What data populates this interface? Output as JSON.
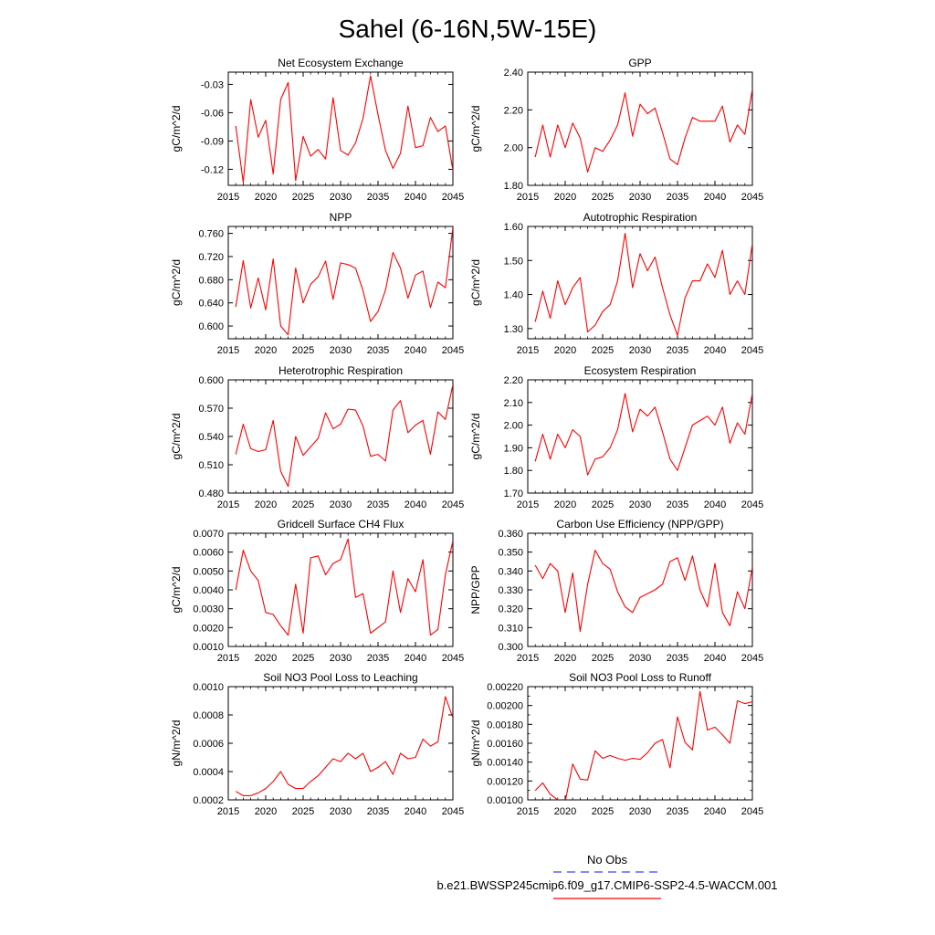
{
  "title": "Sahel (6-16N,5W-15E)",
  "legend": {
    "obs_label": "No Obs",
    "model_label": "b.e21.BWSSP245cmip6.f09_g17.CMIP6-SSP2-4.5-WACCM.001",
    "obs_color": "#4040ff",
    "model_color": "#ff0000"
  },
  "chart_data": [
    {
      "type": "line",
      "title": "Net Ecosystem Exchange",
      "ylabel": "gC/m^2/d",
      "xlim": [
        2015,
        2045
      ],
      "ylim": [
        -0.137,
        -0.017
      ],
      "xticks": [
        2015,
        2020,
        2025,
        2030,
        2035,
        2040,
        2045
      ],
      "xtick_labels": [
        "2015",
        "2020",
        "2025",
        "2030",
        "2035",
        "2040",
        "2045"
      ],
      "yticks": [
        -0.12,
        -0.09,
        -0.06,
        -0.03
      ],
      "ytick_labels": [
        "-0.12",
        "-0.09",
        "-0.06",
        "-0.03"
      ],
      "x": [
        2016,
        2017,
        2018,
        2019,
        2020,
        2021,
        2022,
        2023,
        2024,
        2025,
        2026,
        2027,
        2028,
        2029,
        2030,
        2031,
        2032,
        2033,
        2034,
        2035,
        2036,
        2037,
        2038,
        2039,
        2040,
        2041,
        2042,
        2043,
        2044,
        2045
      ],
      "series": [
        {
          "values": [
            -0.074,
            -0.134,
            -0.046,
            -0.086,
            -0.068,
            -0.125,
            -0.046,
            -0.028,
            -0.132,
            -0.085,
            -0.106,
            -0.099,
            -0.109,
            -0.044,
            -0.1,
            -0.105,
            -0.092,
            -0.066,
            -0.021,
            -0.062,
            -0.1,
            -0.119,
            -0.103,
            -0.053,
            -0.097,
            -0.095,
            -0.065,
            -0.08,
            -0.074,
            -0.121
          ]
        }
      ]
    },
    {
      "type": "line",
      "title": "GPP",
      "ylabel": "gC/m^2/d",
      "xlim": [
        2015,
        2045
      ],
      "ylim": [
        1.8,
        2.4
      ],
      "xticks": [
        2015,
        2020,
        2025,
        2030,
        2035,
        2040,
        2045
      ],
      "xtick_labels": [
        "2015",
        "2020",
        "2025",
        "2030",
        "2035",
        "2040",
        "2045"
      ],
      "yticks": [
        1.8,
        2.0,
        2.2,
        2.4
      ],
      "ytick_labels": [
        "1.80",
        "2.00",
        "2.20",
        "2.40"
      ],
      "x": [
        2016,
        2017,
        2018,
        2019,
        2020,
        2021,
        2022,
        2023,
        2024,
        2025,
        2026,
        2027,
        2028,
        2029,
        2030,
        2031,
        2032,
        2033,
        2034,
        2035,
        2036,
        2037,
        2038,
        2039,
        2040,
        2041,
        2042,
        2043,
        2044,
        2045
      ],
      "series": [
        {
          "values": [
            1.95,
            2.12,
            1.95,
            2.12,
            2.0,
            2.13,
            2.05,
            1.87,
            2.0,
            1.98,
            2.04,
            2.12,
            2.29,
            2.06,
            2.23,
            2.18,
            2.21,
            2.08,
            1.94,
            1.91,
            2.05,
            2.16,
            2.14,
            2.14,
            2.14,
            2.22,
            2.03,
            2.12,
            2.07,
            2.31
          ]
        }
      ]
    },
    {
      "type": "line",
      "title": "NPP",
      "ylabel": "gC/m^2/d",
      "xlim": [
        2015,
        2045
      ],
      "ylim": [
        0.578,
        0.772
      ],
      "xticks": [
        2015,
        2020,
        2025,
        2030,
        2035,
        2040,
        2045
      ],
      "xtick_labels": [
        "2015",
        "2020",
        "2025",
        "2030",
        "2035",
        "2040",
        "2045"
      ],
      "yticks": [
        0.6,
        0.64,
        0.68,
        0.72,
        0.76
      ],
      "ytick_labels": [
        "0.600",
        "0.640",
        "0.680",
        "0.720",
        "0.760"
      ],
      "x": [
        2016,
        2017,
        2018,
        2019,
        2020,
        2021,
        2022,
        2023,
        2024,
        2025,
        2026,
        2027,
        2028,
        2029,
        2030,
        2031,
        2032,
        2033,
        2034,
        2035,
        2036,
        2037,
        2038,
        2039,
        2040,
        2041,
        2042,
        2043,
        2044,
        2045
      ],
      "series": [
        {
          "values": [
            0.633,
            0.713,
            0.631,
            0.683,
            0.628,
            0.716,
            0.6,
            0.585,
            0.7,
            0.64,
            0.672,
            0.685,
            0.712,
            0.646,
            0.709,
            0.706,
            0.7,
            0.661,
            0.608,
            0.625,
            0.662,
            0.727,
            0.7,
            0.648,
            0.688,
            0.695,
            0.632,
            0.676,
            0.666,
            0.77
          ]
        }
      ]
    },
    {
      "type": "line",
      "title": "Autotrophic Respiration",
      "ylabel": "gC/m^2/d",
      "xlim": [
        2015,
        2045
      ],
      "ylim": [
        1.27,
        1.6
      ],
      "xticks": [
        2015,
        2020,
        2025,
        2030,
        2035,
        2040,
        2045
      ],
      "xtick_labels": [
        "2015",
        "2020",
        "2025",
        "2030",
        "2035",
        "2040",
        "2045"
      ],
      "yticks": [
        1.3,
        1.4,
        1.5,
        1.6
      ],
      "ytick_labels": [
        "1.30",
        "1.40",
        "1.50",
        "1.60"
      ],
      "x": [
        2016,
        2017,
        2018,
        2019,
        2020,
        2021,
        2022,
        2023,
        2024,
        2025,
        2026,
        2027,
        2028,
        2029,
        2030,
        2031,
        2032,
        2033,
        2034,
        2035,
        2036,
        2037,
        2038,
        2039,
        2040,
        2041,
        2042,
        2043,
        2044,
        2045
      ],
      "series": [
        {
          "values": [
            1.32,
            1.41,
            1.33,
            1.44,
            1.37,
            1.42,
            1.45,
            1.29,
            1.31,
            1.35,
            1.37,
            1.44,
            1.58,
            1.42,
            1.52,
            1.47,
            1.51,
            1.42,
            1.34,
            1.28,
            1.39,
            1.44,
            1.44,
            1.49,
            1.45,
            1.53,
            1.4,
            1.44,
            1.4,
            1.55
          ]
        }
      ]
    },
    {
      "type": "line",
      "title": "Heterotrophic Respiration",
      "ylabel": "gC/m^2/d",
      "xlim": [
        2015,
        2045
      ],
      "ylim": [
        0.48,
        0.6
      ],
      "xticks": [
        2015,
        2020,
        2025,
        2030,
        2035,
        2040,
        2045
      ],
      "xtick_labels": [
        "2015",
        "2020",
        "2025",
        "2030",
        "2035",
        "2040",
        "2045"
      ],
      "yticks": [
        0.48,
        0.51,
        0.54,
        0.57,
        0.6
      ],
      "ytick_labels": [
        "0.480",
        "0.510",
        "0.540",
        "0.570",
        "0.600"
      ],
      "x": [
        2016,
        2017,
        2018,
        2019,
        2020,
        2021,
        2022,
        2023,
        2024,
        2025,
        2026,
        2027,
        2028,
        2029,
        2030,
        2031,
        2032,
        2033,
        2034,
        2035,
        2036,
        2037,
        2038,
        2039,
        2040,
        2041,
        2042,
        2043,
        2044,
        2045
      ],
      "series": [
        {
          "values": [
            0.521,
            0.553,
            0.527,
            0.524,
            0.526,
            0.557,
            0.503,
            0.487,
            0.54,
            0.52,
            0.529,
            0.538,
            0.565,
            0.548,
            0.553,
            0.569,
            0.568,
            0.551,
            0.519,
            0.521,
            0.514,
            0.568,
            0.578,
            0.544,
            0.552,
            0.557,
            0.521,
            0.566,
            0.558,
            0.595
          ]
        }
      ]
    },
    {
      "type": "line",
      "title": "Ecosystem Respiration",
      "ylabel": "gC/m^2/d",
      "xlim": [
        2015,
        2045
      ],
      "ylim": [
        1.7,
        2.2
      ],
      "xticks": [
        2015,
        2020,
        2025,
        2030,
        2035,
        2040,
        2045
      ],
      "xtick_labels": [
        "2015",
        "2020",
        "2025",
        "2030",
        "2035",
        "2040",
        "2045"
      ],
      "yticks": [
        1.7,
        1.8,
        1.9,
        2.0,
        2.1,
        2.2
      ],
      "ytick_labels": [
        "1.70",
        "1.80",
        "1.90",
        "2.00",
        "2.10",
        "2.20"
      ],
      "x": [
        2016,
        2017,
        2018,
        2019,
        2020,
        2021,
        2022,
        2023,
        2024,
        2025,
        2026,
        2027,
        2028,
        2029,
        2030,
        2031,
        2032,
        2033,
        2034,
        2035,
        2036,
        2037,
        2038,
        2039,
        2040,
        2041,
        2042,
        2043,
        2044,
        2045
      ],
      "series": [
        {
          "values": [
            1.84,
            1.96,
            1.85,
            1.96,
            1.9,
            1.98,
            1.95,
            1.78,
            1.85,
            1.86,
            1.9,
            1.98,
            2.14,
            1.97,
            2.07,
            2.04,
            2.08,
            1.97,
            1.85,
            1.8,
            1.9,
            2.0,
            2.02,
            2.04,
            2.0,
            2.08,
            1.92,
            2.01,
            1.96,
            2.14
          ]
        }
      ]
    },
    {
      "type": "line",
      "title": "Gridcell Surface CH4 Flux",
      "ylabel": "gC/m^2/d",
      "xlim": [
        2015,
        2045
      ],
      "ylim": [
        0.001,
        0.007
      ],
      "xticks": [
        2015,
        2020,
        2025,
        2030,
        2035,
        2040,
        2045
      ],
      "xtick_labels": [
        "2015",
        "2020",
        "2025",
        "2030",
        "2035",
        "2040",
        "2045"
      ],
      "yticks": [
        0.001,
        0.002,
        0.003,
        0.004,
        0.005,
        0.006,
        0.007
      ],
      "ytick_labels": [
        "0.0010",
        "0.0020",
        "0.0030",
        "0.0040",
        "0.0050",
        "0.0060",
        "0.0070"
      ],
      "x": [
        2016,
        2017,
        2018,
        2019,
        2020,
        2021,
        2022,
        2023,
        2024,
        2025,
        2026,
        2027,
        2028,
        2029,
        2030,
        2031,
        2032,
        2033,
        2034,
        2035,
        2036,
        2037,
        2038,
        2039,
        2040,
        2041,
        2042,
        2043,
        2044,
        2045
      ],
      "series": [
        {
          "values": [
            0.004,
            0.0061,
            0.005,
            0.0045,
            0.0028,
            0.0027,
            0.0021,
            0.0016,
            0.0043,
            0.0017,
            0.0057,
            0.0058,
            0.0048,
            0.0054,
            0.0056,
            0.0067,
            0.0036,
            0.0038,
            0.0017,
            0.002,
            0.0023,
            0.005,
            0.0028,
            0.0046,
            0.0039,
            0.0056,
            0.0016,
            0.0019,
            0.0048,
            0.0066
          ]
        }
      ]
    },
    {
      "type": "line",
      "title": "Carbon Use Efficiency (NPP/GPP)",
      "ylabel": "NPP/GPP",
      "xlim": [
        2015,
        2045
      ],
      "ylim": [
        0.3,
        0.36
      ],
      "xticks": [
        2015,
        2020,
        2025,
        2030,
        2035,
        2040,
        2045
      ],
      "xtick_labels": [
        "2015",
        "2020",
        "2025",
        "2030",
        "2035",
        "2040",
        "2045"
      ],
      "yticks": [
        0.3,
        0.31,
        0.32,
        0.33,
        0.34,
        0.35,
        0.36
      ],
      "ytick_labels": [
        "0.300",
        "0.310",
        "0.320",
        "0.330",
        "0.340",
        "0.350",
        "0.360"
      ],
      "x": [
        2016,
        2017,
        2018,
        2019,
        2020,
        2021,
        2022,
        2023,
        2024,
        2025,
        2026,
        2027,
        2028,
        2029,
        2030,
        2031,
        2032,
        2033,
        2034,
        2035,
        2036,
        2037,
        2038,
        2039,
        2040,
        2041,
        2042,
        2043,
        2044,
        2045
      ],
      "series": [
        {
          "values": [
            0.343,
            0.336,
            0.344,
            0.34,
            0.318,
            0.339,
            0.308,
            0.333,
            0.351,
            0.344,
            0.341,
            0.329,
            0.321,
            0.318,
            0.326,
            0.328,
            0.33,
            0.333,
            0.345,
            0.347,
            0.335,
            0.348,
            0.33,
            0.321,
            0.344,
            0.318,
            0.311,
            0.329,
            0.32,
            0.342
          ]
        }
      ]
    },
    {
      "type": "line",
      "title": "Soil NO3 Pool Loss to Leaching",
      "ylabel": "gN/m^2/d",
      "xlim": [
        2015,
        2045
      ],
      "ylim": [
        0.0002,
        0.001
      ],
      "xticks": [
        2015,
        2020,
        2025,
        2030,
        2035,
        2040,
        2045
      ],
      "xtick_labels": [
        "2015",
        "2020",
        "2025",
        "2030",
        "2035",
        "2040",
        "2045"
      ],
      "yticks": [
        0.0002,
        0.0004,
        0.0006,
        0.0008,
        0.001
      ],
      "ytick_labels": [
        "0.0002",
        "0.0004",
        "0.0006",
        "0.0008",
        "0.0010"
      ],
      "x": [
        2016,
        2017,
        2018,
        2019,
        2020,
        2021,
        2022,
        2023,
        2024,
        2025,
        2026,
        2027,
        2028,
        2029,
        2030,
        2031,
        2032,
        2033,
        2034,
        2035,
        2036,
        2037,
        2038,
        2039,
        2040,
        2041,
        2042,
        2043,
        2044,
        2045
      ],
      "series": [
        {
          "values": [
            0.00026,
            0.00023,
            0.00023,
            0.00025,
            0.00028,
            0.00033,
            0.0004,
            0.00031,
            0.00028,
            0.00028,
            0.00033,
            0.00037,
            0.00043,
            0.00049,
            0.00047,
            0.00053,
            0.00049,
            0.00053,
            0.0004,
            0.00043,
            0.00047,
            0.00038,
            0.00053,
            0.00049,
            0.0005,
            0.00063,
            0.00058,
            0.00061,
            0.00093,
            0.00078
          ]
        }
      ]
    },
    {
      "type": "line",
      "title": "Soil NO3 Pool Loss to Runoff",
      "ylabel": "gN/m^2/d",
      "xlim": [
        2015,
        2045
      ],
      "ylim": [
        0.001,
        0.0022
      ],
      "xticks": [
        2015,
        2020,
        2025,
        2030,
        2035,
        2040,
        2045
      ],
      "xtick_labels": [
        "2015",
        "2020",
        "2025",
        "2030",
        "2035",
        "2040",
        "2045"
      ],
      "yticks": [
        0.001,
        0.0012,
        0.0014,
        0.0016,
        0.0018,
        0.002,
        0.0022
      ],
      "ytick_labels": [
        "0.00100",
        "0.00120",
        "0.00140",
        "0.00160",
        "0.00180",
        "0.00200",
        "0.00220"
      ],
      "yminor": [
        0.0011,
        0.0013,
        0.0015,
        0.0017,
        0.0019,
        0.0021
      ],
      "x": [
        2016,
        2017,
        2018,
        2019,
        2020,
        2021,
        2022,
        2023,
        2024,
        2025,
        2026,
        2027,
        2028,
        2029,
        2030,
        2031,
        2032,
        2033,
        2034,
        2035,
        2036,
        2037,
        2038,
        2039,
        2040,
        2041,
        2042,
        2043,
        2044,
        2045
      ],
      "series": [
        {
          "values": [
            0.0011,
            0.00118,
            0.00106,
            0.001,
            0.00098,
            0.00138,
            0.00122,
            0.00121,
            0.00152,
            0.00144,
            0.00147,
            0.00144,
            0.00142,
            0.00144,
            0.00143,
            0.0015,
            0.0016,
            0.00164,
            0.00134,
            0.00188,
            0.00161,
            0.00153,
            0.00215,
            0.00174,
            0.00177,
            0.00169,
            0.0016,
            0.00205,
            0.00202,
            0.00204
          ]
        }
      ]
    }
  ]
}
